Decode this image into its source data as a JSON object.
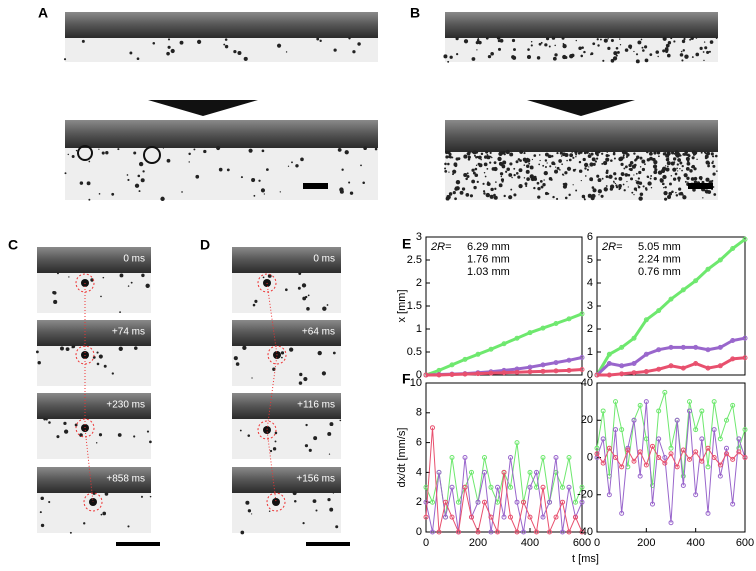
{
  "panels": {
    "A": "A",
    "B": "B",
    "C": "C",
    "D": "D",
    "E": "E",
    "F": "F"
  },
  "time_labels": {
    "C": [
      "0 ms",
      "+74 ms",
      "+230 ms",
      "+858 ms"
    ],
    "D": [
      "0 ms",
      "+64 ms",
      "+116 ms",
      "+156 ms"
    ]
  },
  "chart_data": [
    {
      "type": "line",
      "ylabel": "x [mm]",
      "legend_title": "2R=",
      "xlim": [
        0,
        600
      ],
      "ylim": [
        0,
        3
      ],
      "yticks": [
        0,
        0.5,
        1,
        1.5,
        2,
        2.5,
        3
      ],
      "x": [
        0,
        50,
        100,
        150,
        200,
        250,
        300,
        350,
        400,
        450,
        500,
        550,
        600
      ],
      "series": [
        {
          "name": "6.29 mm",
          "color": "#6ee86e",
          "values": [
            0,
            0.1,
            0.22,
            0.34,
            0.45,
            0.56,
            0.68,
            0.8,
            0.92,
            1.02,
            1.12,
            1.22,
            1.33
          ]
        },
        {
          "name": "1.76 mm",
          "color": "#9966cc",
          "values": [
            0,
            0.01,
            0.02,
            0.03,
            0.05,
            0.07,
            0.1,
            0.13,
            0.17,
            0.22,
            0.27,
            0.32,
            0.38
          ]
        },
        {
          "name": "1.03 mm",
          "color": "#e8506e",
          "values": [
            0,
            0,
            0.01,
            0.02,
            0.03,
            0.04,
            0.05,
            0.06,
            0.07,
            0.08,
            0.09,
            0.1,
            0.12
          ]
        }
      ]
    },
    {
      "type": "line",
      "legend_title": "2R=",
      "xlim": [
        0,
        600
      ],
      "ylim": [
        0,
        6
      ],
      "yticks": [
        0,
        1,
        2,
        3,
        4,
        5,
        6
      ],
      "x": [
        0,
        50,
        100,
        150,
        200,
        250,
        300,
        350,
        400,
        450,
        500,
        550,
        600
      ],
      "series": [
        {
          "name": "5.05 mm",
          "color": "#6ee86e",
          "values": [
            0,
            0.9,
            1.2,
            1.6,
            2.4,
            2.8,
            3.3,
            3.7,
            4.1,
            4.6,
            5.0,
            5.5,
            5.9
          ]
        },
        {
          "name": "2.24 mm",
          "color": "#9966cc",
          "values": [
            0,
            0.5,
            0.4,
            0.5,
            0.9,
            1.1,
            1.2,
            1.2,
            1.2,
            1.1,
            1.2,
            1.5,
            1.6
          ]
        },
        {
          "name": "0.76 mm",
          "color": "#e8506e",
          "values": [
            0,
            0,
            0.05,
            0.1,
            0.15,
            0.25,
            0.4,
            0.3,
            0.5,
            0.3,
            0.4,
            0.7,
            0.75
          ]
        }
      ]
    },
    {
      "type": "line",
      "ylabel": "dx/dt [mm/s]",
      "xlabel": "t [ms]",
      "xlim": [
        0,
        600
      ],
      "xticks": [
        0,
        200,
        400,
        600
      ],
      "ylim": [
        0,
        10
      ],
      "yticks": [
        0,
        2,
        4,
        6,
        8,
        10
      ],
      "x": [
        0,
        25,
        50,
        75,
        100,
        125,
        150,
        175,
        200,
        225,
        250,
        275,
        300,
        325,
        350,
        375,
        400,
        425,
        450,
        475,
        500,
        525,
        550,
        575,
        600
      ],
      "series": [
        {
          "color": "#6ee86e",
          "values": [
            3,
            2,
            4,
            1,
            5,
            2,
            3,
            4,
            2,
            5,
            3,
            2,
            4,
            3,
            6,
            2,
            4,
            3,
            5,
            2,
            4,
            3,
            5,
            2,
            3
          ]
        },
        {
          "color": "#9966cc",
          "values": [
            2,
            0,
            4,
            1,
            3,
            0,
            5,
            1,
            2,
            4,
            0,
            3,
            1,
            5,
            2,
            0,
            3,
            4,
            1,
            2,
            5,
            0,
            3,
            1,
            2
          ]
        },
        {
          "color": "#e8506e",
          "values": [
            1,
            7,
            0,
            2,
            1,
            0,
            3,
            1,
            0,
            2,
            1,
            0,
            4,
            1,
            0,
            2,
            1,
            0,
            3,
            0,
            1,
            2,
            0,
            1,
            0
          ]
        }
      ]
    },
    {
      "type": "line",
      "xlim": [
        0,
        600
      ],
      "xticks": [
        0,
        200,
        400,
        600
      ],
      "ylim": [
        -40,
        40
      ],
      "yticks": [
        -40,
        -20,
        0,
        20,
        40
      ],
      "x": [
        0,
        25,
        50,
        75,
        100,
        125,
        150,
        175,
        200,
        225,
        250,
        275,
        300,
        325,
        350,
        375,
        400,
        425,
        450,
        475,
        500,
        525,
        550,
        575,
        600
      ],
      "series": [
        {
          "color": "#6ee86e",
          "values": [
            5,
            25,
            -10,
            30,
            15,
            -5,
            20,
            28,
            10,
            -15,
            25,
            35,
            5,
            20,
            -10,
            30,
            15,
            25,
            -5,
            30,
            10,
            20,
            28,
            5,
            15
          ]
        },
        {
          "color": "#9966cc",
          "values": [
            0,
            10,
            -20,
            15,
            -30,
            5,
            20,
            -10,
            30,
            -25,
            10,
            0,
            -35,
            20,
            -15,
            25,
            -20,
            10,
            -30,
            15,
            -10,
            5,
            -25,
            10,
            0
          ]
        },
        {
          "color": "#e8506e",
          "values": [
            2,
            -3,
            5,
            0,
            -5,
            4,
            -2,
            3,
            -4,
            6,
            0,
            -3,
            2,
            -5,
            4,
            -1,
            3,
            -2,
            5,
            0,
            -4,
            2,
            -1,
            3,
            0
          ]
        }
      ]
    }
  ]
}
